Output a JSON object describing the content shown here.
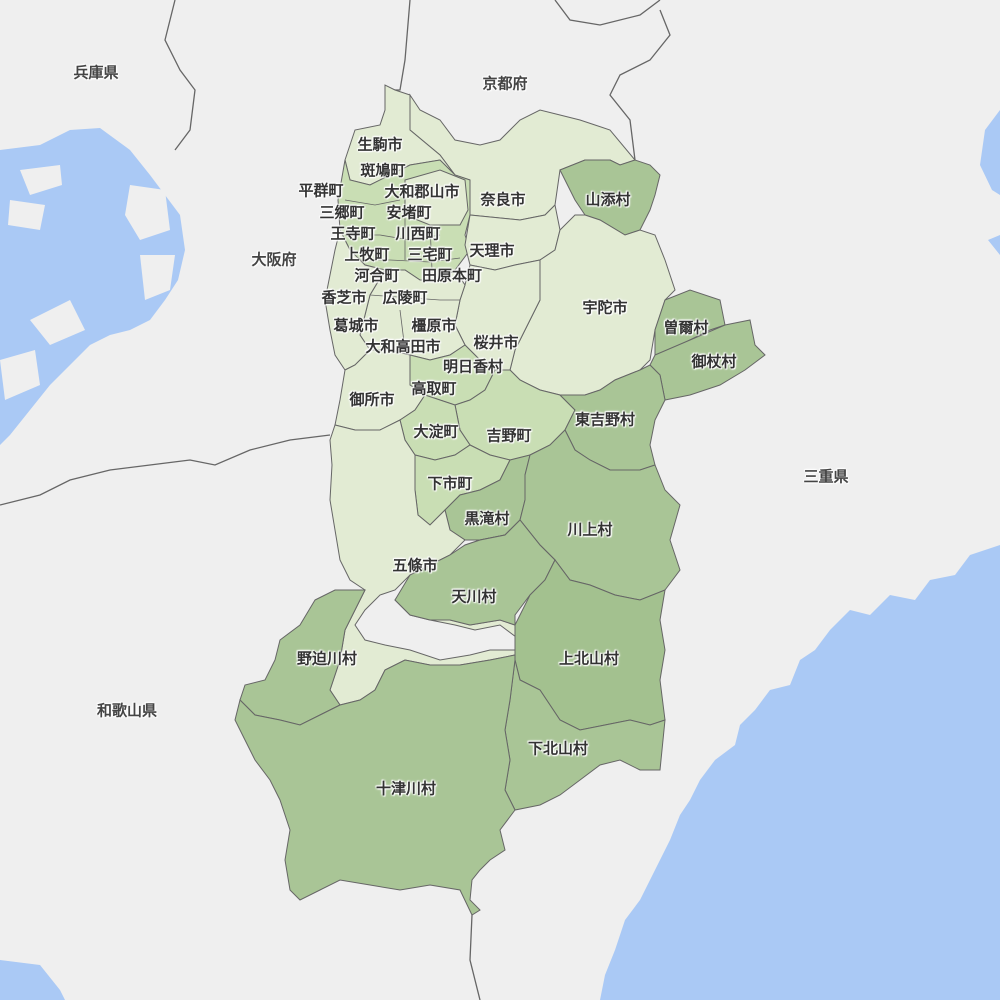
{
  "colors": {
    "sea": "#aac9f5",
    "land": "#efefef",
    "border": "#666666",
    "urban": "#e2ebd3",
    "mid": "#c9deb4",
    "rural": "#a9c596",
    "rural_dark": "#a3c18f"
  },
  "prefectures": {
    "hyogo": "兵庫県",
    "kyoto": "京都府",
    "osaka": "大阪府",
    "mie": "三重県",
    "wakayama": "和歌山県"
  },
  "municipalities": {
    "ikoma": "生駒市",
    "ikaruga": "斑鳩町",
    "heguri": "平群町",
    "yamatokoriyama": "大和郡山市",
    "nara": "奈良市",
    "sango": "三郷町",
    "ando": "安堵町",
    "oji": "王寺町",
    "kawanishi": "川西町",
    "tenri": "天理市",
    "yamazoe": "山添村",
    "kanmaki": "上牧町",
    "miyake": "三宅町",
    "kawai": "河合町",
    "tawaramoto": "田原本町",
    "kashiba": "香芝市",
    "koryo": "広陵町",
    "uda": "宇陀市",
    "soni": "曽爾村",
    "katsuragi": "葛城市",
    "kashihara": "橿原市",
    "mitsue": "御杖村",
    "yamatotakada": "大和高田市",
    "sakurai": "桜井市",
    "asuka": "明日香村",
    "takatori": "高取町",
    "gose": "御所市",
    "higashiyoshino": "東吉野村",
    "oyodo": "大淀町",
    "yoshino": "吉野町",
    "shimoichi": "下市町",
    "kurotaki": "黒滝村",
    "kawakami": "川上村",
    "gojo": "五條市",
    "tenkawa": "天川村",
    "nosegawa": "野迫川村",
    "kamikitayama": "上北山村",
    "shimokitayama": "下北山村",
    "totsukawa": "十津川村"
  }
}
